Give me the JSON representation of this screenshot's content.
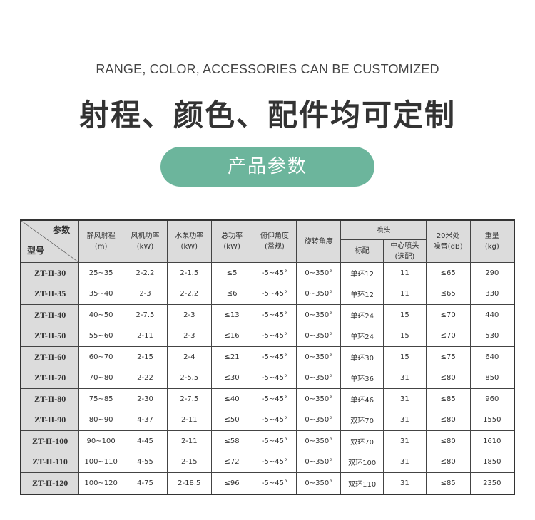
{
  "subtitle": "RANGE, COLOR, ACCESSORIES CAN BE CUSTOMIZED",
  "title": "射程、颜色、配件均可定制",
  "section_label": "产品参数",
  "accent": "#6cb59c",
  "header": {
    "corner_top": "参数",
    "corner_bottom": "型号",
    "range": [
      "静风射程",
      "(m)"
    ],
    "fan": [
      "风机功率",
      "(kW)"
    ],
    "pump": [
      "水泵功率",
      "(kW)"
    ],
    "total": [
      "总功率",
      "(kW)"
    ],
    "pitch": [
      "俯仰角度",
      "(常规)"
    ],
    "rotation": "旋转角度",
    "nozzle": "喷头",
    "nozzle_std": "标配",
    "nozzle_center": [
      "中心喷头",
      "(选配)"
    ],
    "noise": [
      "20米处",
      "噪音(dB)"
    ],
    "weight": [
      "重量",
      "(kg)"
    ]
  },
  "rows": [
    [
      "ZT-II-30",
      "25~35",
      "2-2.2",
      "2-1.5",
      "≤5",
      "-5~45°",
      "0~350°",
      "单环12",
      "11",
      "≤65",
      "290"
    ],
    [
      "ZT-II-35",
      "35~40",
      "2-3",
      "2-2.2",
      "≤6",
      "-5~45°",
      "0~350°",
      "单环12",
      "11",
      "≤65",
      "330"
    ],
    [
      "ZT-II-40",
      "40~50",
      "2-7.5",
      "2-3",
      "≤13",
      "-5~45°",
      "0~350°",
      "单环24",
      "15",
      "≤70",
      "440"
    ],
    [
      "ZT-II-50",
      "55~60",
      "2-11",
      "2-3",
      "≤16",
      "-5~45°",
      "0~350°",
      "单环24",
      "15",
      "≤70",
      "530"
    ],
    [
      "ZT-II-60",
      "60~70",
      "2-15",
      "2-4",
      "≤21",
      "-5~45°",
      "0~350°",
      "单环30",
      "15",
      "≤75",
      "640"
    ],
    [
      "ZT-II-70",
      "70~80",
      "2-22",
      "2-5.5",
      "≤30",
      "-5~45°",
      "0~350°",
      "单环36",
      "31",
      "≤80",
      "850"
    ],
    [
      "ZT-II-80",
      "75~85",
      "2-30",
      "2-7.5",
      "≤40",
      "-5~45°",
      "0~350°",
      "单环46",
      "31",
      "≤85",
      "960"
    ],
    [
      "ZT-II-90",
      "80~90",
      "4-37",
      "2-11",
      "≤50",
      "-5~45°",
      "0~350°",
      "双环70",
      "31",
      "≤80",
      "1550"
    ],
    [
      "ZT-II-100",
      "90~100",
      "4-45",
      "2-11",
      "≤58",
      "-5~45°",
      "0~350°",
      "双环70",
      "31",
      "≤80",
      "1610"
    ],
    [
      "ZT-II-110",
      "100~110",
      "4-55",
      "2-15",
      "≤72",
      "-5~45°",
      "0~350°",
      "双环100",
      "31",
      "≤80",
      "1850"
    ],
    [
      "ZT-II-120",
      "100~120",
      "4-75",
      "2-18.5",
      "≤96",
      "-5~45°",
      "0~350°",
      "双环110",
      "31",
      "≤85",
      "2350"
    ]
  ]
}
